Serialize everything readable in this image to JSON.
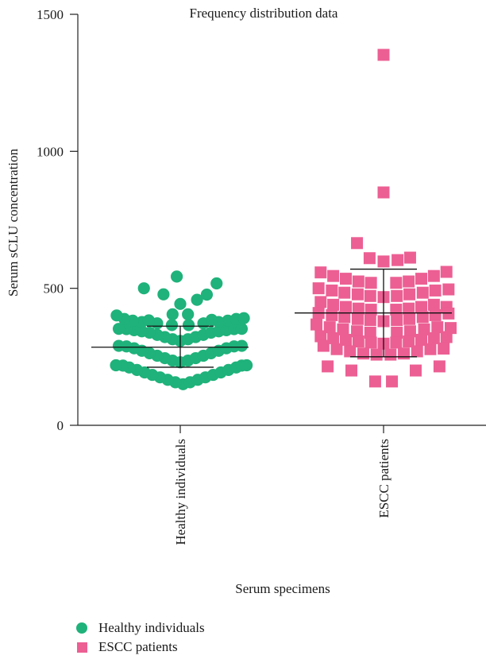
{
  "chart_data": {
    "type": "scatter",
    "title": "Frequency distribution data",
    "xlabel": "Serum specimens",
    "ylabel": "Serum sCLU concentration",
    "ylim": [
      0,
      1500
    ],
    "yticks": [
      "0",
      "500",
      "1000",
      "1500"
    ],
    "categories": [
      "Healthy individuals",
      "ESCC patients"
    ],
    "grid": false,
    "legend_position": "bottom-left",
    "series": [
      {
        "name": "Healthy individuals",
        "marker": "circle",
        "color": "#1fb27a",
        "summary": {
          "mean": 285,
          "sd_low": 212,
          "sd_high": 362
        },
        "points": [
          [
            0.04,
            150
          ],
          [
            -0.07,
            157
          ],
          [
            0.14,
            157
          ],
          [
            -0.18,
            166
          ],
          [
            0.25,
            166
          ],
          [
            -0.29,
            175
          ],
          [
            0.36,
            175
          ],
          [
            -0.4,
            184
          ],
          [
            0.47,
            184
          ],
          [
            -0.51,
            193
          ],
          [
            0.58,
            193
          ],
          [
            -0.62,
            202
          ],
          [
            0.69,
            202
          ],
          [
            -0.73,
            211
          ],
          [
            0.8,
            211
          ],
          [
            -0.82,
            218
          ],
          [
            0.88,
            218
          ],
          [
            -0.92,
            219
          ],
          [
            0.95,
            219
          ],
          [
            0.0,
            230
          ],
          [
            -0.11,
            236
          ],
          [
            0.11,
            236
          ],
          [
            -0.22,
            245
          ],
          [
            0.22,
            245
          ],
          [
            -0.33,
            254
          ],
          [
            0.33,
            254
          ],
          [
            -0.44,
            263
          ],
          [
            0.44,
            263
          ],
          [
            -0.55,
            272
          ],
          [
            0.55,
            272
          ],
          [
            -0.66,
            281
          ],
          [
            0.66,
            281
          ],
          [
            -0.77,
            288
          ],
          [
            0.77,
            288
          ],
          [
            -0.88,
            290
          ],
          [
            0.88,
            290
          ],
          [
            0.0,
            308
          ],
          [
            -0.11,
            314
          ],
          [
            0.11,
            314
          ],
          [
            -0.22,
            322
          ],
          [
            0.22,
            322
          ],
          [
            -0.33,
            330
          ],
          [
            0.33,
            330
          ],
          [
            -0.44,
            338
          ],
          [
            0.44,
            338
          ],
          [
            -0.55,
            343
          ],
          [
            0.55,
            343
          ],
          [
            -0.66,
            347
          ],
          [
            0.66,
            347
          ],
          [
            -0.77,
            351
          ],
          [
            0.77,
            351
          ],
          [
            -0.88,
            352
          ],
          [
            0.88,
            352
          ],
          [
            -0.12,
            366
          ],
          [
            0.12,
            366
          ],
          [
            -0.33,
            372
          ],
          [
            0.33,
            372
          ],
          [
            -0.55,
            377
          ],
          [
            0.55,
            377
          ],
          [
            -0.68,
            382
          ],
          [
            0.68,
            382
          ],
          [
            -0.8,
            388
          ],
          [
            0.8,
            388
          ],
          [
            -0.91,
            401
          ],
          [
            0.91,
            391
          ],
          [
            -0.11,
            405
          ],
          [
            0.11,
            405
          ],
          [
            0.0,
            443
          ],
          [
            -0.52,
            500
          ],
          [
            0.52,
            518
          ],
          [
            -0.24,
            478
          ],
          [
            0.24,
            458
          ],
          [
            0.38,
            477
          ],
          [
            -0.05,
            543
          ],
          [
            -0.45,
            383
          ],
          [
            0.45,
            385
          ]
        ]
      },
      {
        "name": "ESCC patients",
        "marker": "square",
        "color": "#ec5f93",
        "summary": {
          "mean": 410,
          "sd_low": 250,
          "sd_high": 570
        },
        "points": [
          [
            0.0,
            1352
          ],
          [
            0.0,
            850
          ],
          [
            -0.38,
            665
          ],
          [
            -0.2,
            610
          ],
          [
            0.0,
            598
          ],
          [
            0.2,
            603
          ],
          [
            0.38,
            612
          ],
          [
            -0.9,
            558
          ],
          [
            -0.72,
            545
          ],
          [
            -0.54,
            535
          ],
          [
            -0.36,
            525
          ],
          [
            -0.18,
            520
          ],
          [
            0.18,
            520
          ],
          [
            0.36,
            525
          ],
          [
            0.54,
            535
          ],
          [
            0.72,
            545
          ],
          [
            0.9,
            560
          ],
          [
            -0.93,
            500
          ],
          [
            -0.74,
            492
          ],
          [
            -0.56,
            484
          ],
          [
            -0.37,
            478
          ],
          [
            -0.19,
            472
          ],
          [
            0.0,
            468
          ],
          [
            0.19,
            472
          ],
          [
            0.37,
            478
          ],
          [
            0.56,
            484
          ],
          [
            0.74,
            492
          ],
          [
            0.93,
            496
          ],
          [
            -0.9,
            450
          ],
          [
            -0.72,
            440
          ],
          [
            -0.54,
            432
          ],
          [
            -0.36,
            426
          ],
          [
            -0.18,
            422
          ],
          [
            0.18,
            422
          ],
          [
            0.36,
            426
          ],
          [
            0.54,
            432
          ],
          [
            0.72,
            440
          ],
          [
            0.9,
            432
          ],
          [
            -0.93,
            410
          ],
          [
            -0.74,
            402
          ],
          [
            -0.56,
            395
          ],
          [
            -0.37,
            388
          ],
          [
            -0.19,
            384
          ],
          [
            0.0,
            380
          ],
          [
            0.19,
            384
          ],
          [
            0.37,
            388
          ],
          [
            0.56,
            395
          ],
          [
            0.74,
            402
          ],
          [
            0.93,
            408
          ],
          [
            -0.96,
            368
          ],
          [
            -0.77,
            358
          ],
          [
            -0.58,
            350
          ],
          [
            -0.38,
            343
          ],
          [
            -0.19,
            338
          ],
          [
            0.19,
            338
          ],
          [
            0.38,
            343
          ],
          [
            0.58,
            350
          ],
          [
            0.77,
            358
          ],
          [
            0.96,
            355
          ],
          [
            -0.9,
            325
          ],
          [
            -0.72,
            318
          ],
          [
            -0.54,
            312
          ],
          [
            -0.36,
            306
          ],
          [
            -0.18,
            302
          ],
          [
            0.0,
            298
          ],
          [
            0.18,
            302
          ],
          [
            0.36,
            306
          ],
          [
            0.54,
            312
          ],
          [
            0.72,
            318
          ],
          [
            0.9,
            322
          ],
          [
            -0.86,
            290
          ],
          [
            -0.67,
            278
          ],
          [
            -0.48,
            270
          ],
          [
            -0.29,
            262
          ],
          [
            -0.1,
            258
          ],
          [
            0.1,
            258
          ],
          [
            0.29,
            262
          ],
          [
            0.48,
            270
          ],
          [
            0.67,
            278
          ],
          [
            0.86,
            280
          ],
          [
            -0.8,
            215
          ],
          [
            -0.46,
            200
          ],
          [
            -0.12,
            160
          ],
          [
            0.12,
            160
          ],
          [
            0.46,
            200
          ],
          [
            0.8,
            215
          ]
        ]
      }
    ]
  }
}
